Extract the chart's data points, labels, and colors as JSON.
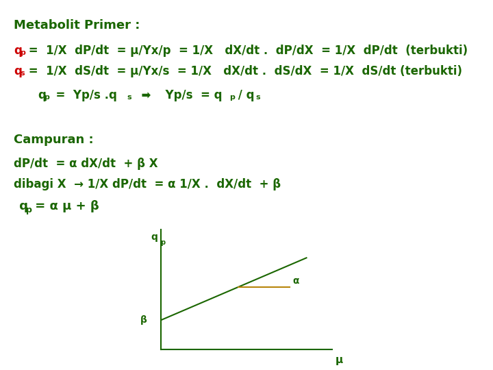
{
  "bg_color": "#ffffff",
  "green": "#1a6600",
  "red": "#cc0000",
  "gold": "#b8860b",
  "title": "Metabolit Primer :",
  "line1_main": " =  1/X  dP/dt  = μ/Yx/p  = 1/X   dX/dt .  dP/dX  = 1/X  dP/dt  (terbukti)",
  "line2_main": " =  1/X  dS/dt  = μ/Yx/s  = 1/X   dX/dt .  dS/dX  = 1/X  dS/dt (terbukti)",
  "section2": "Campuran :",
  "eq1": "dP/dt  = α dX/dt  + β X",
  "eq2": "dibagi X  → 1/X dP/dt  = α 1/X .  dX/dt  + β",
  "eq3_end": " = α μ + β",
  "mu": "μ",
  "alpha": "α",
  "beta": "β",
  "fs_title": 13,
  "fs_body": 12,
  "fs_sub": 8
}
